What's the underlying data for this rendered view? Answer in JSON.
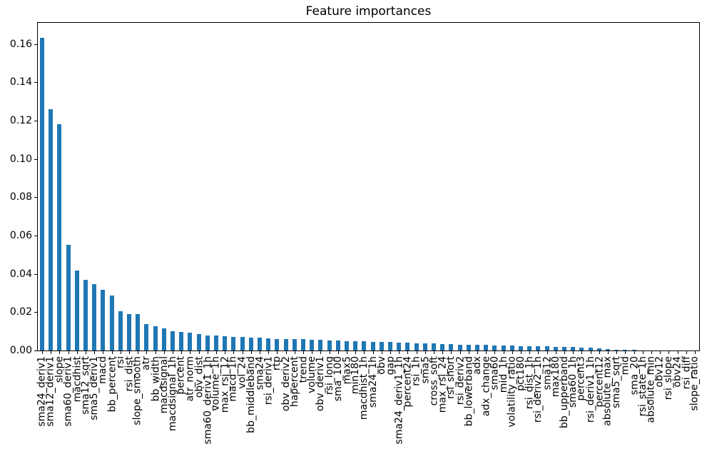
{
  "chart_data": {
    "type": "bar",
    "title": "Feature importances",
    "xlabel": "",
    "ylabel": "",
    "bar_color": "#1f77b4",
    "background_color": "#ffffff",
    "grid": false,
    "legend": null,
    "ylim": [
      0,
      0.171
    ],
    "yticks": [
      "0.00",
      "0.02",
      "0.04",
      "0.06",
      "0.08",
      "0.10",
      "0.12",
      "0.14",
      "0.16"
    ],
    "categories": [
      "sma24_deriv1",
      "sma12_deriv1",
      "slope",
      "sma60_deriv1",
      "macdhist",
      "sma12_sqrt",
      "sma5_deriv1",
      "macd",
      "bb_percent",
      "rsi",
      "rsi_dist",
      "slope_smooth",
      "atr",
      "bb_width",
      "macdsignal",
      "macdsignal_1h",
      "percent",
      "atr_norm",
      "obv_dist",
      "sma60_deriv1_1h",
      "volume_1h",
      "max_rsi_12",
      "macd_1h",
      "vol_24",
      "bb_middleband",
      "sma24",
      "rsi_deriv1",
      "rtp",
      "obv_deriv2",
      "hapercent",
      "trend",
      "volume",
      "obv_deriv1",
      "rsi_long",
      "sma_100",
      "max5",
      "min180",
      "macdhist_1h",
      "sma24_1h",
      "obv",
      "gap",
      "sma24_deriv1_1h",
      "percent24",
      "rsi_1h",
      "sma5",
      "cross_soft",
      "max_rsi_24",
      "rsi_short",
      "rsi_deriv2",
      "bb_lowerband",
      "adx",
      "adx_change",
      "sma60",
      "mid_1h",
      "volatility_ratio",
      "pct180",
      "rsi_dist_1h",
      "rsi_deriv2_1h",
      "sma12",
      "max180",
      "bb_upperband",
      "sma60_1h",
      "percent3",
      "rsi_deriv1_1h",
      "percent12",
      "absolute_max",
      "sma5_sqrt",
      "mid",
      "sma_20",
      "rsi_state_1h",
      "absolute_min",
      "obv12",
      "rsi_slope",
      "obv24",
      "rsi_diff",
      "slope_ratio"
    ],
    "values": [
      0.163,
      0.126,
      0.118,
      0.055,
      0.0417,
      0.037,
      0.0345,
      0.0317,
      0.0287,
      0.0205,
      0.019,
      0.019,
      0.0139,
      0.0125,
      0.0116,
      0.0099,
      0.0098,
      0.0094,
      0.0087,
      0.008,
      0.0079,
      0.0073,
      0.0072,
      0.0072,
      0.0068,
      0.0067,
      0.0062,
      0.0061,
      0.0061,
      0.006,
      0.006,
      0.0057,
      0.0056,
      0.0054,
      0.0053,
      0.005,
      0.0049,
      0.0047,
      0.0046,
      0.0045,
      0.0044,
      0.0042,
      0.004,
      0.0038,
      0.0037,
      0.0036,
      0.0034,
      0.0032,
      0.0031,
      0.003,
      0.0029,
      0.0028,
      0.0027,
      0.0026,
      0.0025,
      0.0024,
      0.0023,
      0.0022,
      0.0021,
      0.002,
      0.0019,
      0.0018,
      0.0016,
      0.0015,
      0.0013,
      0.0009,
      0.0003,
      0.0002,
      0.0002,
      0.0001,
      0.0001,
      0.0001,
      0.0001,
      0.0001,
      0.0,
      0.0
    ]
  }
}
